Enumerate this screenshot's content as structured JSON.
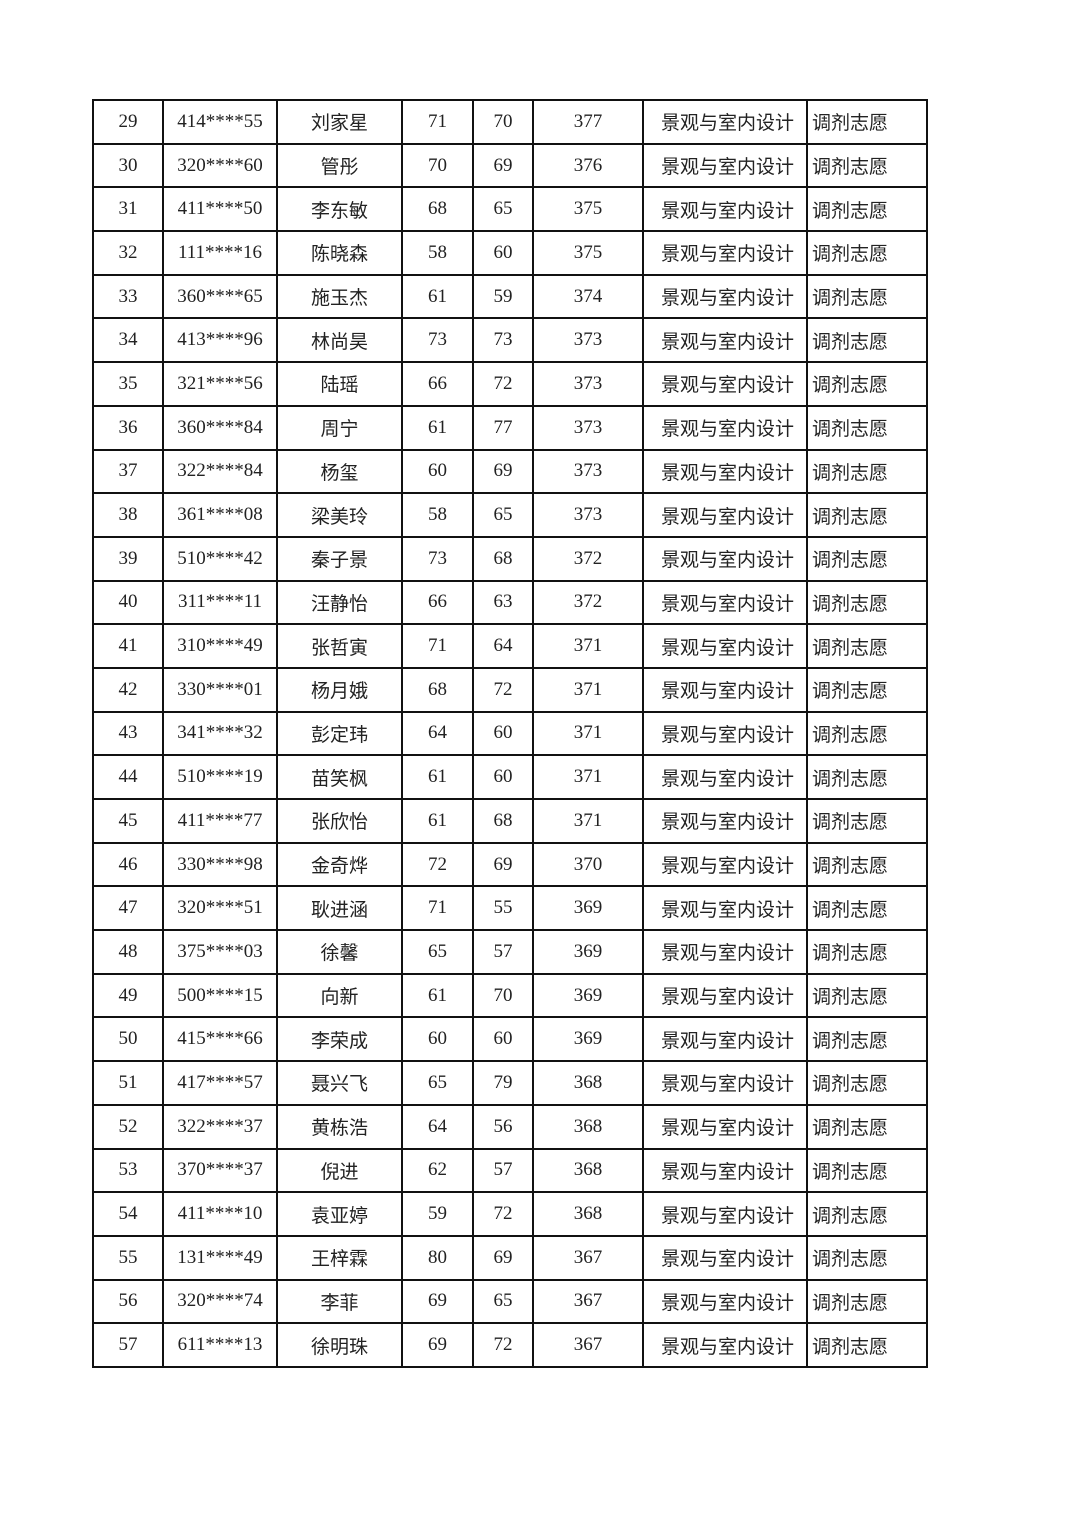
{
  "table": {
    "rows": [
      {
        "no": "29",
        "id": "414****55",
        "name": "刘家星",
        "s1": "71",
        "s2": "70",
        "total": "377",
        "major": "景观与室内设计",
        "type": "调剂志愿"
      },
      {
        "no": "30",
        "id": "320****60",
        "name": "管彤",
        "s1": "70",
        "s2": "69",
        "total": "376",
        "major": "景观与室内设计",
        "type": "调剂志愿"
      },
      {
        "no": "31",
        "id": "411****50",
        "name": "李东敏",
        "s1": "68",
        "s2": "65",
        "total": "375",
        "major": "景观与室内设计",
        "type": "调剂志愿"
      },
      {
        "no": "32",
        "id": "111****16",
        "name": "陈晓森",
        "s1": "58",
        "s2": "60",
        "total": "375",
        "major": "景观与室内设计",
        "type": "调剂志愿"
      },
      {
        "no": "33",
        "id": "360****65",
        "name": "施玉杰",
        "s1": "61",
        "s2": "59",
        "total": "374",
        "major": "景观与室内设计",
        "type": "调剂志愿"
      },
      {
        "no": "34",
        "id": "413****96",
        "name": "林尚昊",
        "s1": "73",
        "s2": "73",
        "total": "373",
        "major": "景观与室内设计",
        "type": "调剂志愿"
      },
      {
        "no": "35",
        "id": "321****56",
        "name": "陆瑶",
        "s1": "66",
        "s2": "72",
        "total": "373",
        "major": "景观与室内设计",
        "type": "调剂志愿"
      },
      {
        "no": "36",
        "id": "360****84",
        "name": "周宁",
        "s1": "61",
        "s2": "77",
        "total": "373",
        "major": "景观与室内设计",
        "type": "调剂志愿"
      },
      {
        "no": "37",
        "id": "322****84",
        "name": "杨玺",
        "s1": "60",
        "s2": "69",
        "total": "373",
        "major": "景观与室内设计",
        "type": "调剂志愿"
      },
      {
        "no": "38",
        "id": "361****08",
        "name": "梁美玲",
        "s1": "58",
        "s2": "65",
        "total": "373",
        "major": "景观与室内设计",
        "type": "调剂志愿"
      },
      {
        "no": "39",
        "id": "510****42",
        "name": "秦子景",
        "s1": "73",
        "s2": "68",
        "total": "372",
        "major": "景观与室内设计",
        "type": "调剂志愿"
      },
      {
        "no": "40",
        "id": "311****11",
        "name": "汪静怡",
        "s1": "66",
        "s2": "63",
        "total": "372",
        "major": "景观与室内设计",
        "type": "调剂志愿"
      },
      {
        "no": "41",
        "id": "310****49",
        "name": "张哲寅",
        "s1": "71",
        "s2": "64",
        "total": "371",
        "major": "景观与室内设计",
        "type": "调剂志愿"
      },
      {
        "no": "42",
        "id": "330****01",
        "name": "杨月娥",
        "s1": "68",
        "s2": "72",
        "total": "371",
        "major": "景观与室内设计",
        "type": "调剂志愿"
      },
      {
        "no": "43",
        "id": "341****32",
        "name": "彭定玮",
        "s1": "64",
        "s2": "60",
        "total": "371",
        "major": "景观与室内设计",
        "type": "调剂志愿"
      },
      {
        "no": "44",
        "id": "510****19",
        "name": "苗笑枫",
        "s1": "61",
        "s2": "60",
        "total": "371",
        "major": "景观与室内设计",
        "type": "调剂志愿"
      },
      {
        "no": "45",
        "id": "411****77",
        "name": "张欣怡",
        "s1": "61",
        "s2": "68",
        "total": "371",
        "major": "景观与室内设计",
        "type": "调剂志愿"
      },
      {
        "no": "46",
        "id": "330****98",
        "name": "金奇烨",
        "s1": "72",
        "s2": "69",
        "total": "370",
        "major": "景观与室内设计",
        "type": "调剂志愿"
      },
      {
        "no": "47",
        "id": "320****51",
        "name": "耿进涵",
        "s1": "71",
        "s2": "55",
        "total": "369",
        "major": "景观与室内设计",
        "type": "调剂志愿"
      },
      {
        "no": "48",
        "id": "375****03",
        "name": "徐馨",
        "s1": "65",
        "s2": "57",
        "total": "369",
        "major": "景观与室内设计",
        "type": "调剂志愿"
      },
      {
        "no": "49",
        "id": "500****15",
        "name": "向新",
        "s1": "61",
        "s2": "70",
        "total": "369",
        "major": "景观与室内设计",
        "type": "调剂志愿"
      },
      {
        "no": "50",
        "id": "415****66",
        "name": "李荣成",
        "s1": "60",
        "s2": "60",
        "total": "369",
        "major": "景观与室内设计",
        "type": "调剂志愿"
      },
      {
        "no": "51",
        "id": "417****57",
        "name": "聂兴飞",
        "s1": "65",
        "s2": "79",
        "total": "368",
        "major": "景观与室内设计",
        "type": "调剂志愿"
      },
      {
        "no": "52",
        "id": "322****37",
        "name": "黄栋浩",
        "s1": "64",
        "s2": "56",
        "total": "368",
        "major": "景观与室内设计",
        "type": "调剂志愿"
      },
      {
        "no": "53",
        "id": "370****37",
        "name": "倪进",
        "s1": "62",
        "s2": "57",
        "total": "368",
        "major": "景观与室内设计",
        "type": "调剂志愿"
      },
      {
        "no": "54",
        "id": "411****10",
        "name": "袁亚婷",
        "s1": "59",
        "s2": "72",
        "total": "368",
        "major": "景观与室内设计",
        "type": "调剂志愿"
      },
      {
        "no": "55",
        "id": "131****49",
        "name": "王梓霖",
        "s1": "80",
        "s2": "69",
        "total": "367",
        "major": "景观与室内设计",
        "type": "调剂志愿"
      },
      {
        "no": "56",
        "id": "320****74",
        "name": "李菲",
        "s1": "69",
        "s2": "65",
        "total": "367",
        "major": "景观与室内设计",
        "type": "调剂志愿"
      },
      {
        "no": "57",
        "id": "611****13",
        "name": "徐明珠",
        "s1": "69",
        "s2": "72",
        "total": "367",
        "major": "景观与室内设计",
        "type": "调剂志愿"
      }
    ]
  }
}
